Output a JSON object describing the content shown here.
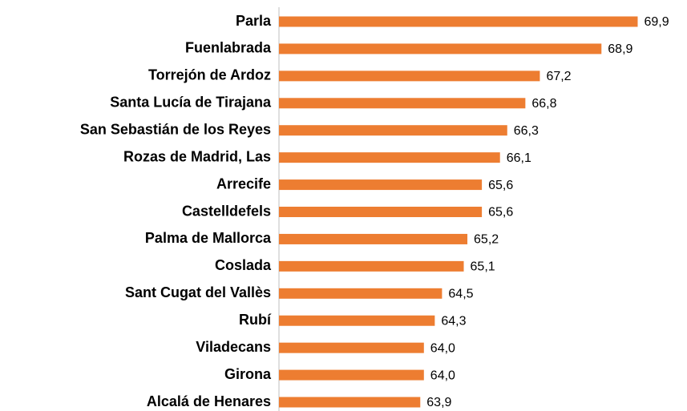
{
  "chart_data": {
    "type": "barh",
    "categories": [
      "Parla",
      "Fuenlabrada",
      "Torrejón de Ardoz",
      "Santa Lucía de Tirajana",
      "San Sebastián de los Reyes",
      "Rozas de Madrid, Las",
      "Arrecife",
      "Castelldefels",
      "Palma de Mallorca",
      "Coslada",
      "Sant Cugat del Vallès",
      "Rubí",
      "Viladecans",
      "Girona",
      "Alcalá de Henares"
    ],
    "values": [
      69.9,
      68.9,
      67.2,
      66.8,
      66.3,
      66.1,
      65.6,
      65.6,
      65.2,
      65.1,
      64.5,
      64.3,
      64.0,
      64.0,
      63.9
    ],
    "value_labels": [
      "69,9",
      "68,9",
      "67,2",
      "66,8",
      "66,3",
      "66,1",
      "65,6",
      "65,6",
      "65,2",
      "65,1",
      "64,5",
      "64,3",
      "64,0",
      "64,0",
      "63,9"
    ],
    "color": "#ed7d31",
    "xlim": [
      60,
      70
    ]
  }
}
